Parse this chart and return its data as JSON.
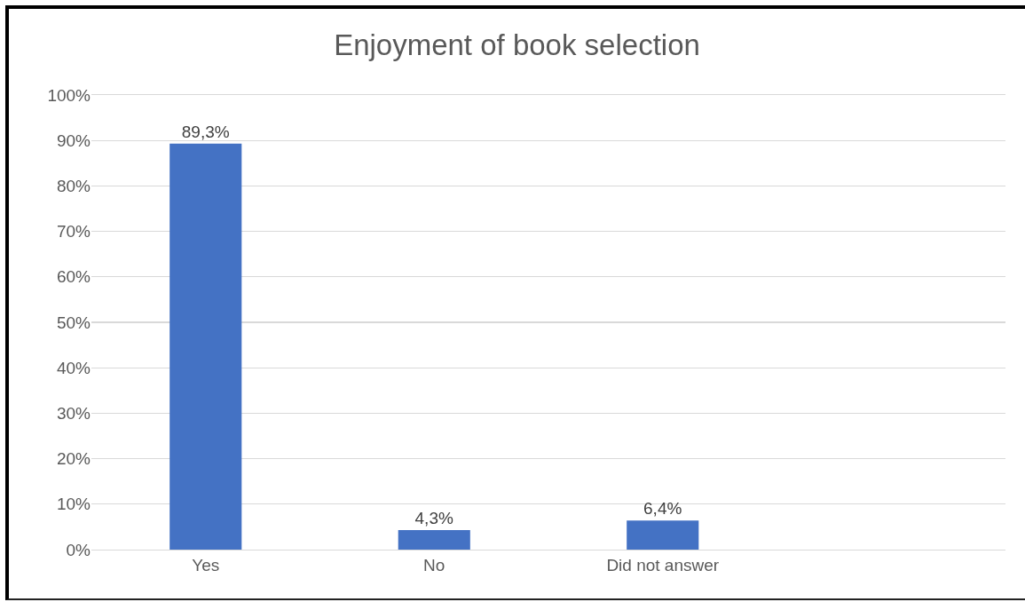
{
  "chart_data": {
    "type": "bar",
    "title": "Enjoyment of book selection",
    "categories": [
      "Yes",
      "No",
      "Did not answer",
      null
    ],
    "values": [
      89.3,
      4.3,
      6.4,
      null
    ],
    "value_labels": [
      "89,3%",
      "4,3%",
      "6,4%",
      null
    ],
    "color": "#4472c4",
    "ylim": [
      0,
      100
    ],
    "yticks": [
      {
        "value": 0,
        "label": "0%"
      },
      {
        "value": 10,
        "label": "10%"
      },
      {
        "value": 20,
        "label": "20%"
      },
      {
        "value": 30,
        "label": "30%"
      },
      {
        "value": 40,
        "label": "40%"
      },
      {
        "value": 50,
        "label": "50%"
      },
      {
        "value": 60,
        "label": "60%"
      },
      {
        "value": 70,
        "label": "70%"
      },
      {
        "value": 80,
        "label": "80%"
      },
      {
        "value": 90,
        "label": "90%"
      },
      {
        "value": 100,
        "label": "100%"
      }
    ],
    "grid": "y"
  }
}
